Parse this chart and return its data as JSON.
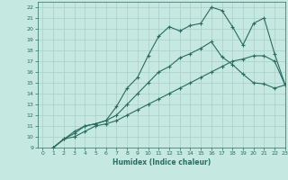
{
  "xlabel": "Humidex (Indice chaleur)",
  "ylabel": "",
  "background_color": "#c5e8e0",
  "grid_color": "#a8cfc8",
  "line_color": "#2a6b62",
  "xlim": [
    -0.5,
    23
  ],
  "ylim": [
    9,
    22.5
  ],
  "xticks": [
    0,
    1,
    2,
    3,
    4,
    5,
    6,
    7,
    8,
    9,
    10,
    11,
    12,
    13,
    14,
    15,
    16,
    17,
    18,
    19,
    20,
    21,
    22,
    23
  ],
  "yticks": [
    9,
    10,
    11,
    12,
    13,
    14,
    15,
    16,
    17,
    18,
    19,
    20,
    21,
    22
  ],
  "line1_x": [
    1,
    2,
    3,
    4,
    5,
    6,
    7,
    8,
    9,
    10,
    11,
    12,
    13,
    14,
    15,
    16,
    17,
    18,
    19,
    20,
    21,
    22,
    23
  ],
  "line1_y": [
    9.0,
    9.8,
    10.0,
    10.5,
    11.0,
    11.2,
    11.5,
    12.0,
    12.5,
    13.0,
    13.5,
    14.0,
    14.5,
    15.0,
    15.5,
    16.0,
    16.5,
    17.0,
    17.2,
    17.5,
    17.5,
    17.0,
    14.8
  ],
  "line2_x": [
    1,
    3,
    4,
    5,
    6,
    7,
    8,
    9,
    10,
    11,
    12,
    13,
    14,
    15,
    16,
    17,
    18,
    19,
    20,
    21,
    22,
    23
  ],
  "line2_y": [
    9.0,
    10.5,
    11.0,
    11.2,
    11.5,
    12.0,
    13.0,
    14.0,
    15.0,
    16.0,
    16.5,
    17.3,
    17.7,
    18.2,
    18.8,
    17.4,
    16.7,
    15.8,
    15.0,
    14.9,
    14.5,
    14.8
  ],
  "line3_x": [
    1,
    2,
    3,
    4,
    5,
    6,
    7,
    8,
    9,
    10,
    11,
    12,
    13,
    14,
    15,
    16,
    17,
    18,
    19,
    20,
    21,
    22,
    23
  ],
  "line3_y": [
    9.0,
    9.8,
    10.3,
    11.0,
    11.2,
    11.5,
    12.8,
    14.5,
    15.5,
    17.5,
    19.3,
    20.2,
    19.8,
    20.3,
    20.5,
    22.0,
    21.7,
    20.2,
    18.5,
    20.5,
    21.0,
    17.7,
    14.8
  ],
  "marker": "+"
}
